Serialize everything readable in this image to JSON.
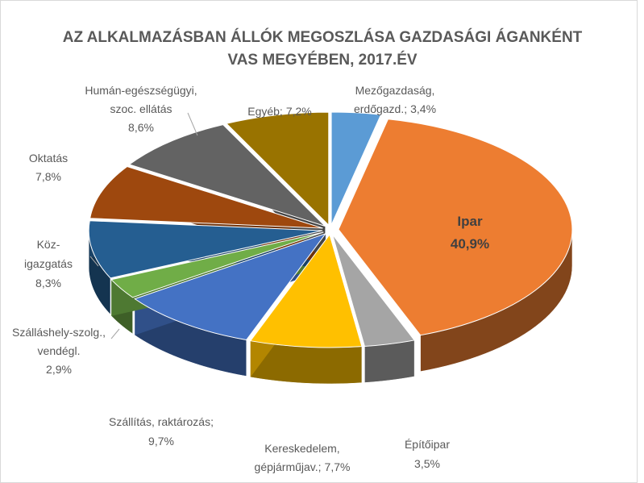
{
  "chart_data": {
    "type": "pie",
    "title": [
      "AZ ALKALMAZÁSBAN ÁLLÓK MEGOSZLÁSA GAZDASÁGI ÁGANKÉNT",
      "VAS MEGYÉBEN, 2017.ÉV"
    ],
    "categories": [
      [
        "Mezőgazdaság,",
        "erdőgazd.;"
      ],
      [
        "Ipar"
      ],
      [
        "Építőipar"
      ],
      [
        "Kereskedelem,",
        "gépjárműjav.;"
      ],
      [
        "Szállítás, raktározás;"
      ],
      [
        "Szálláshely-szolg.,",
        "vendégl."
      ],
      [
        "Köz-",
        "igazgatás"
      ],
      [
        "Oktatás"
      ],
      [
        "Humán-egészségügyi,",
        "szoc. ellátás"
      ],
      [
        "Egyéb;"
      ]
    ],
    "values": [
      3.4,
      40.9,
      3.5,
      7.7,
      9.7,
      2.9,
      8.3,
      7.8,
      8.6,
      7.2
    ],
    "value_labels": [
      "3,4%",
      "40,9%",
      "3,5%",
      "7,7%",
      "9,7%",
      "2,9%",
      "8,3%",
      "7,8%",
      "8,6%",
      "7,2%"
    ],
    "colors": [
      "#5b9bd5",
      "#ed7d31",
      "#a5a5a5",
      "#ffc000",
      "#4472c4",
      "#70ad47",
      "#255e91",
      "#9e480e",
      "#636363",
      "#997300"
    ]
  }
}
